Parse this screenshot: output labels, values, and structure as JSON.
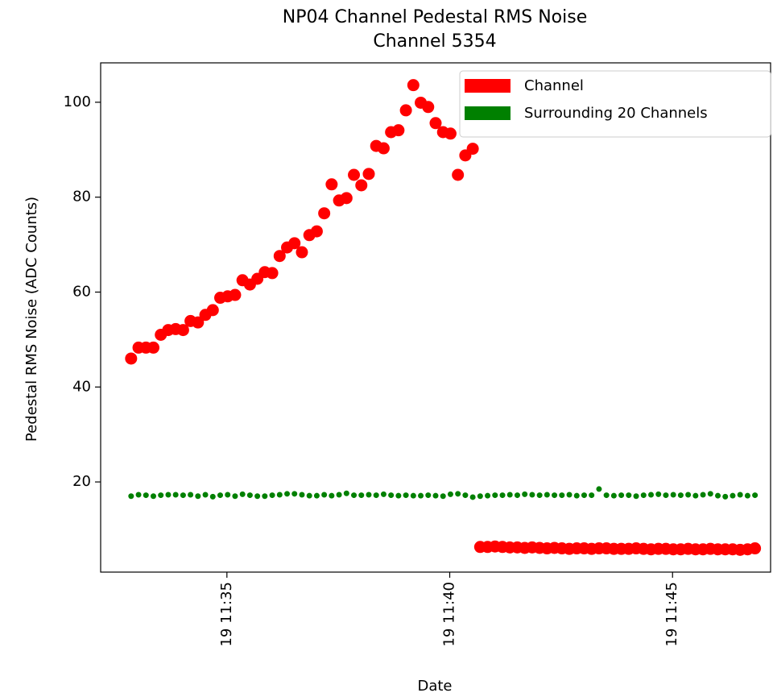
{
  "chart_data": {
    "type": "scatter",
    "title": "NP04 Channel Pedestal RMS Noise",
    "subtitle": "Channel 5354",
    "x_label": "Date",
    "y_label": "Pedestal RMS Noise (ADC Counts)",
    "x": [
      "19 11:32:51",
      "19 11:33:01",
      "19 11:33:11",
      "19 11:33:21",
      "19 11:33:31",
      "19 11:33:41",
      "19 11:33:51",
      "19 11:34:01",
      "19 11:34:11",
      "19 11:34:21",
      "19 11:34:31",
      "19 11:34:41",
      "19 11:34:51",
      "19 11:35:01",
      "19 11:35:11",
      "19 11:35:21",
      "19 11:35:31",
      "19 11:35:41",
      "19 11:35:51",
      "19 11:36:01",
      "19 11:36:11",
      "19 11:36:21",
      "19 11:36:31",
      "19 11:36:41",
      "19 11:36:51",
      "19 11:37:01",
      "19 11:37:11",
      "19 11:37:21",
      "19 11:37:31",
      "19 11:37:41",
      "19 11:37:51",
      "19 11:38:01",
      "19 11:38:11",
      "19 11:38:21",
      "19 11:38:31",
      "19 11:38:41",
      "19 11:38:51",
      "19 11:39:01",
      "19 11:39:11",
      "19 11:39:21",
      "19 11:39:31",
      "19 11:39:41",
      "19 11:39:51",
      "19 11:40:01",
      "19 11:40:11",
      "19 11:40:21",
      "19 11:40:31",
      "19 11:40:41",
      "19 11:40:51",
      "19 11:41:01",
      "19 11:41:11",
      "19 11:41:21",
      "19 11:41:31",
      "19 11:41:41",
      "19 11:41:51",
      "19 11:42:01",
      "19 11:42:11",
      "19 11:42:21",
      "19 11:42:31",
      "19 11:42:41",
      "19 11:42:51",
      "19 11:43:01",
      "19 11:43:11",
      "19 11:43:21",
      "19 11:43:31",
      "19 11:43:41",
      "19 11:43:51",
      "19 11:44:01",
      "19 11:44:11",
      "19 11:44:21",
      "19 11:44:31",
      "19 11:44:41",
      "19 11:44:51",
      "19 11:45:01",
      "19 11:45:11",
      "19 11:45:21",
      "19 11:45:31",
      "19 11:45:41",
      "19 11:45:51",
      "19 11:46:01",
      "19 11:46:11",
      "19 11:46:21",
      "19 11:46:31",
      "19 11:46:41",
      "19 11:46:51"
    ],
    "series": [
      {
        "name": "Channel",
        "color": "#ff0000",
        "values": [
          46.0,
          48.3,
          48.3,
          48.3,
          51.0,
          52.0,
          52.2,
          52.0,
          53.9,
          53.6,
          55.2,
          56.2,
          58.8,
          59.1,
          59.4,
          62.5,
          61.6,
          62.8,
          64.2,
          64.0,
          67.6,
          69.4,
          70.3,
          68.4,
          72.0,
          72.8,
          76.6,
          82.7,
          79.3,
          79.8,
          84.7,
          82.5,
          84.9,
          90.8,
          90.3,
          93.7,
          94.1,
          98.3,
          103.6,
          99.9,
          99.0,
          95.6,
          93.7,
          93.4,
          84.7,
          88.8,
          90.2,
          6.3,
          6.3,
          6.4,
          6.3,
          6.2,
          6.2,
          6.1,
          6.2,
          6.1,
          6.0,
          6.1,
          6.0,
          5.9,
          6.0,
          6.0,
          5.9,
          6.0,
          6.0,
          5.9,
          5.9,
          5.9,
          6.0,
          5.9,
          5.8,
          5.9,
          5.9,
          5.8,
          5.8,
          5.9,
          5.8,
          5.8,
          5.9,
          5.8,
          5.8,
          5.8,
          5.7,
          5.8,
          6.0
        ]
      },
      {
        "name": "Surrounding 20 Channels",
        "color": "#008000",
        "values": [
          17.0,
          17.3,
          17.2,
          17.0,
          17.2,
          17.3,
          17.3,
          17.2,
          17.3,
          17.0,
          17.3,
          16.9,
          17.2,
          17.3,
          17.0,
          17.4,
          17.2,
          17.0,
          17.0,
          17.2,
          17.3,
          17.5,
          17.5,
          17.3,
          17.1,
          17.1,
          17.3,
          17.1,
          17.3,
          17.6,
          17.2,
          17.2,
          17.3,
          17.2,
          17.4,
          17.2,
          17.1,
          17.2,
          17.1,
          17.1,
          17.2,
          17.1,
          17.0,
          17.4,
          17.5,
          17.2,
          16.8,
          17.0,
          17.1,
          17.2,
          17.2,
          17.3,
          17.2,
          17.4,
          17.3,
          17.2,
          17.3,
          17.2,
          17.2,
          17.3,
          17.1,
          17.2,
          17.2,
          18.5,
          17.2,
          17.1,
          17.2,
          17.2,
          17.0,
          17.2,
          17.3,
          17.4,
          17.2,
          17.3,
          17.2,
          17.3,
          17.1,
          17.3,
          17.5,
          17.1,
          16.9,
          17.1,
          17.3,
          17.1,
          17.2
        ]
      }
    ],
    "xlim": [
      "19 11:32:10",
      "19 11:47:12"
    ],
    "xticks": [
      "19 11:35",
      "19 11:40",
      "19 11:45"
    ],
    "ylim": [
      1.0,
      108.3
    ],
    "yticks": [
      20,
      40,
      60,
      80,
      100
    ],
    "legend": "upper right",
    "grid": false
  }
}
